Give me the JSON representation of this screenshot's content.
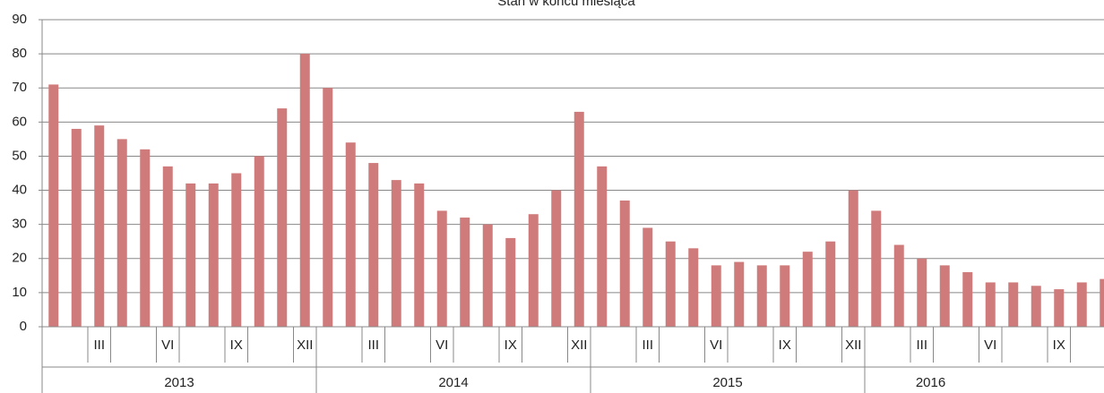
{
  "chart_data": {
    "type": "bar",
    "title": "Stan w końcu miesiąca",
    "categories": [
      null,
      null,
      "III",
      null,
      null,
      "VI",
      null,
      null,
      "IX",
      null,
      null,
      "XII",
      null,
      null,
      "III",
      null,
      null,
      "VI",
      null,
      null,
      "IX",
      null,
      null,
      "XII",
      null,
      null,
      "III",
      null,
      null,
      "VI",
      null,
      null,
      "IX",
      null,
      null,
      "XII",
      null,
      null,
      "III",
      null,
      null,
      "VI",
      null,
      null,
      "IX",
      null,
      null
    ],
    "years": [
      "2013",
      "2014",
      "2015",
      "2016"
    ],
    "values": [
      71,
      58,
      59,
      55,
      52,
      47,
      42,
      42,
      45,
      50,
      64,
      80,
      70,
      54,
      48,
      43,
      42,
      34,
      32,
      30,
      26,
      33,
      40,
      63,
      47,
      37,
      29,
      25,
      23,
      18,
      19,
      18,
      18,
      22,
      25,
      40,
      34,
      24,
      20,
      18,
      16,
      13,
      13,
      12,
      11,
      13,
      14
    ],
    "color": "#d07b7b",
    "ylim": [
      0,
      90
    ],
    "yticks": [
      0,
      10,
      20,
      30,
      40,
      50,
      60,
      70,
      80,
      90
    ],
    "grid": true
  }
}
